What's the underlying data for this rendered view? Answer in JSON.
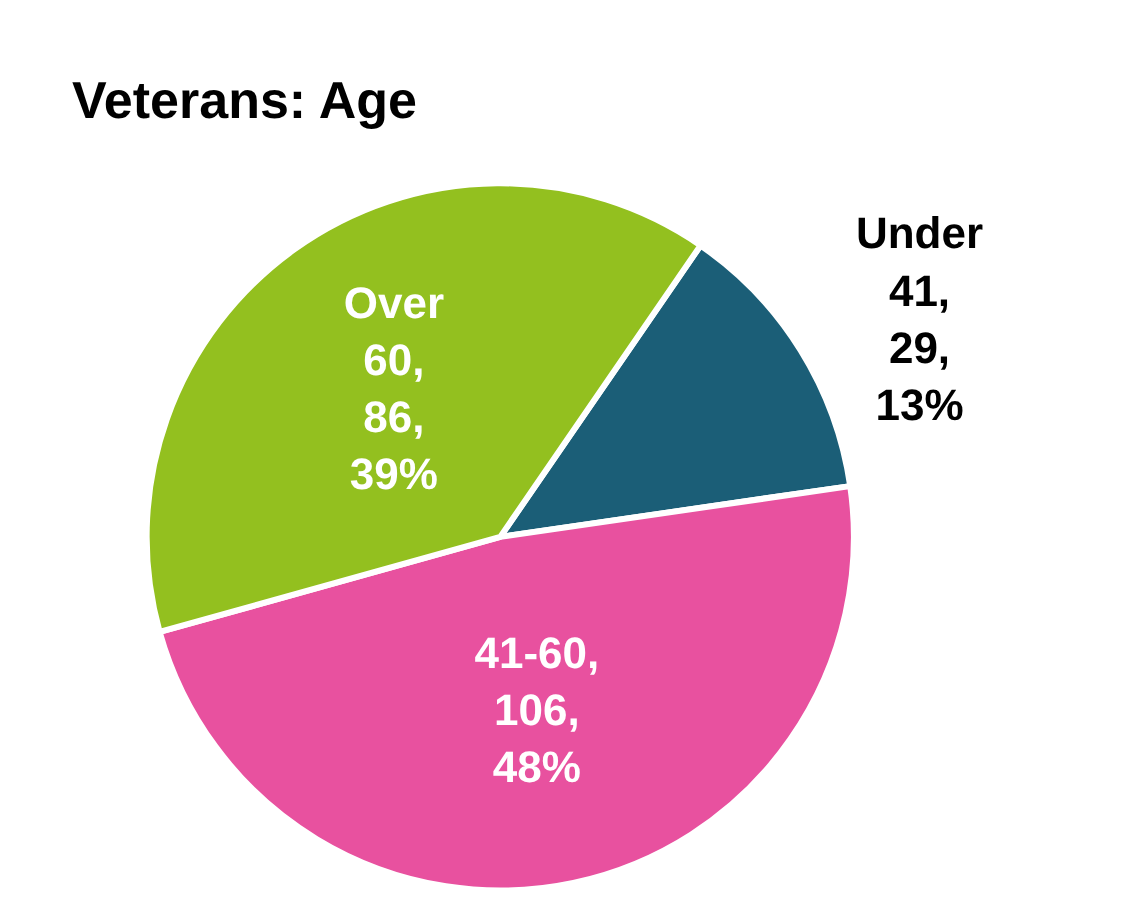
{
  "chart_data": {
    "type": "pie",
    "title": "Veterans: Age",
    "categories": [
      "Under 41",
      "41-60",
      "Over 60"
    ],
    "values": [
      29,
      106,
      86
    ],
    "value_labels": [
      ", 29, 13%",
      ", 106, 48%",
      ", 86, 39%"
    ],
    "colors": [
      "#1b5e77",
      "#e8519f",
      "#93c01f"
    ],
    "legend": false
  }
}
